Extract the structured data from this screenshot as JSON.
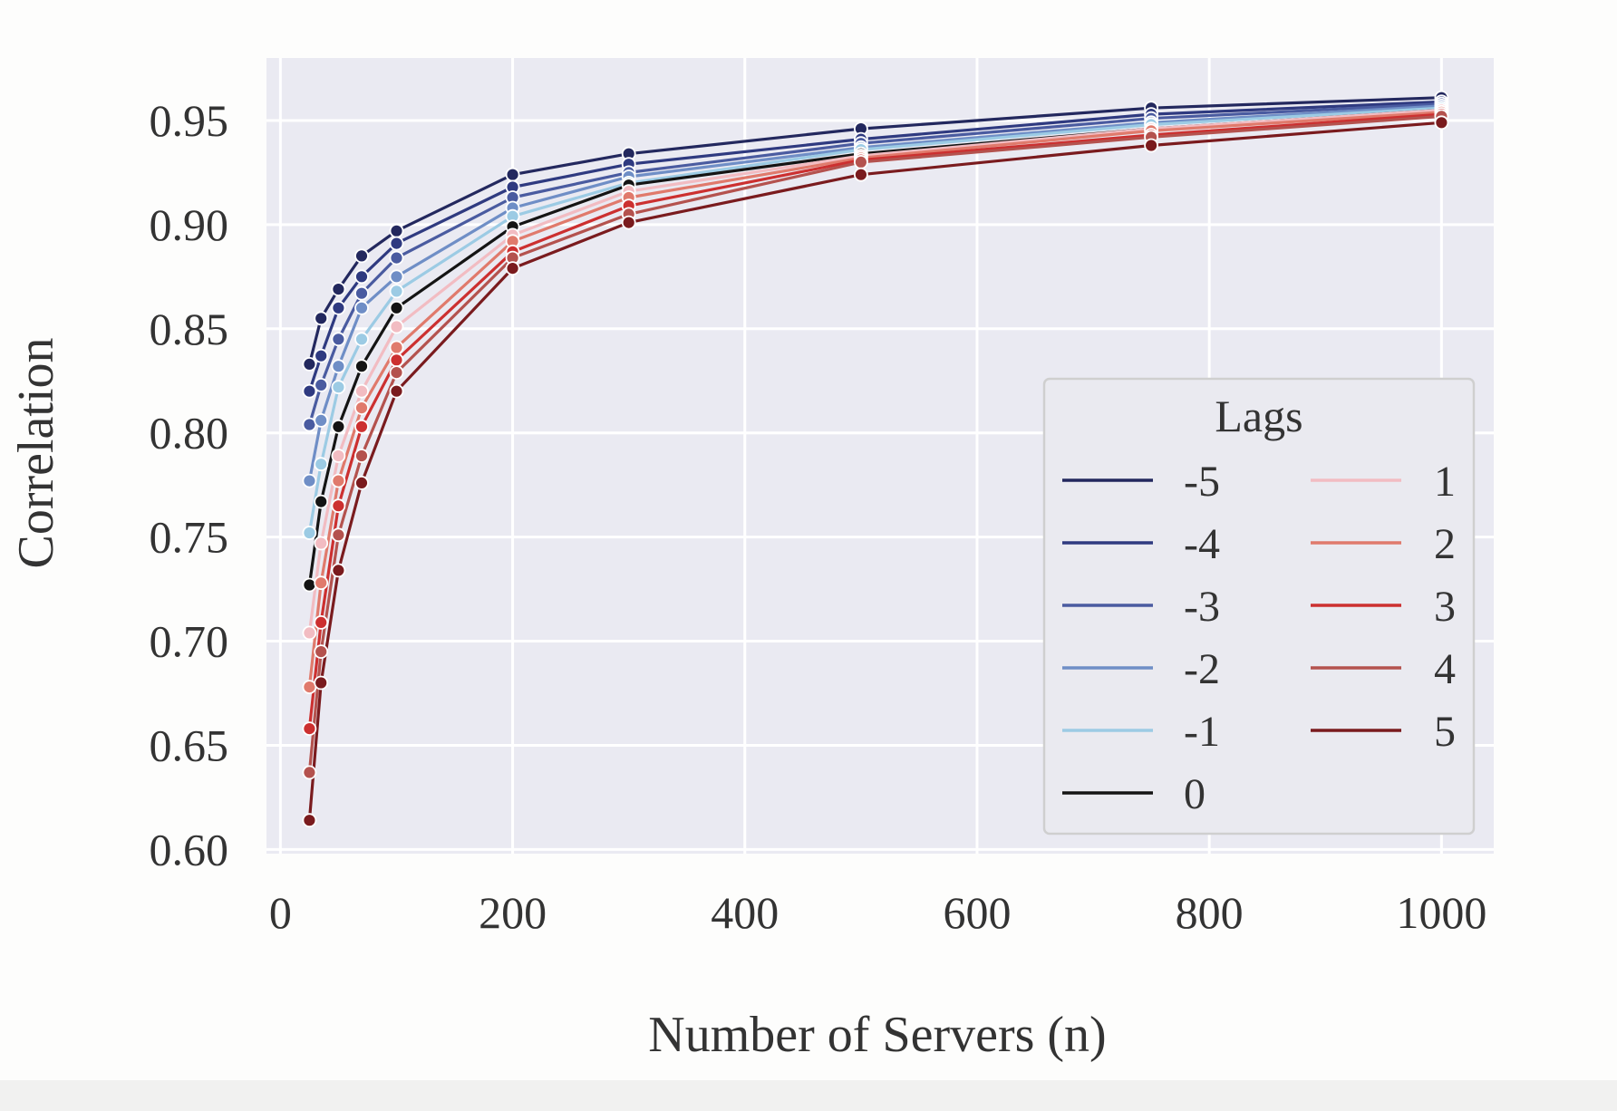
{
  "chart_data": {
    "type": "line",
    "title": "",
    "xlabel": "Number of Servers (n)",
    "ylabel": "Correlation",
    "xlim": [
      -12,
      1045
    ],
    "ylim": [
      0.598,
      0.98
    ],
    "xticks": [
      0,
      200,
      400,
      600,
      800,
      1000
    ],
    "xtick_labels": [
      "0",
      "200",
      "400",
      "600",
      "800",
      "1000"
    ],
    "yticks": [
      0.6,
      0.65,
      0.7,
      0.75,
      0.8,
      0.85,
      0.9,
      0.95
    ],
    "ytick_labels": [
      "0.60",
      "0.65",
      "0.70",
      "0.75",
      "0.80",
      "0.85",
      "0.90",
      "0.95"
    ],
    "grid": true,
    "legend": {
      "title": "Lags",
      "position": "lower-right",
      "ncol": 2
    },
    "x": [
      25,
      35,
      50,
      70,
      100,
      200,
      300,
      500,
      750,
      1000
    ],
    "series": [
      {
        "name": "-5",
        "color": "#23285e",
        "values": [
          0.833,
          0.855,
          0.869,
          0.885,
          0.897,
          0.924,
          0.934,
          0.946,
          0.956,
          0.961
        ]
      },
      {
        "name": "-4",
        "color": "#2f3a80",
        "values": [
          0.82,
          0.837,
          0.86,
          0.875,
          0.891,
          0.918,
          0.929,
          0.941,
          0.953,
          0.959
        ]
      },
      {
        "name": "-3",
        "color": "#4a5ba0",
        "values": [
          0.804,
          0.823,
          0.845,
          0.867,
          0.884,
          0.913,
          0.925,
          0.939,
          0.951,
          0.958
        ]
      },
      {
        "name": "-2",
        "color": "#6f8ec6",
        "values": [
          0.777,
          0.806,
          0.832,
          0.86,
          0.875,
          0.908,
          0.923,
          0.937,
          0.949,
          0.957
        ]
      },
      {
        "name": "-1",
        "color": "#9ccbe4",
        "values": [
          0.752,
          0.785,
          0.822,
          0.845,
          0.868,
          0.904,
          0.92,
          0.936,
          0.948,
          0.956
        ]
      },
      {
        "name": "0",
        "color": "#141414",
        "values": [
          0.727,
          0.767,
          0.803,
          0.832,
          0.86,
          0.899,
          0.919,
          0.934,
          0.946,
          0.955
        ]
      },
      {
        "name": "1",
        "color": "#f2bcc2",
        "values": [
          0.704,
          0.747,
          0.789,
          0.82,
          0.851,
          0.895,
          0.916,
          0.933,
          0.946,
          0.955
        ]
      },
      {
        "name": "2",
        "color": "#e07a6c",
        "values": [
          0.678,
          0.728,
          0.777,
          0.812,
          0.841,
          0.892,
          0.913,
          0.932,
          0.945,
          0.954
        ]
      },
      {
        "name": "3",
        "color": "#cc3030",
        "values": [
          0.658,
          0.709,
          0.765,
          0.803,
          0.835,
          0.887,
          0.909,
          0.931,
          0.943,
          0.953
        ]
      },
      {
        "name": "4",
        "color": "#b4524e",
        "values": [
          0.637,
          0.695,
          0.751,
          0.789,
          0.829,
          0.884,
          0.905,
          0.93,
          0.942,
          0.952
        ]
      },
      {
        "name": "5",
        "color": "#7a1b1e",
        "values": [
          0.614,
          0.68,
          0.734,
          0.776,
          0.82,
          0.879,
          0.901,
          0.924,
          0.938,
          0.949
        ]
      }
    ]
  }
}
